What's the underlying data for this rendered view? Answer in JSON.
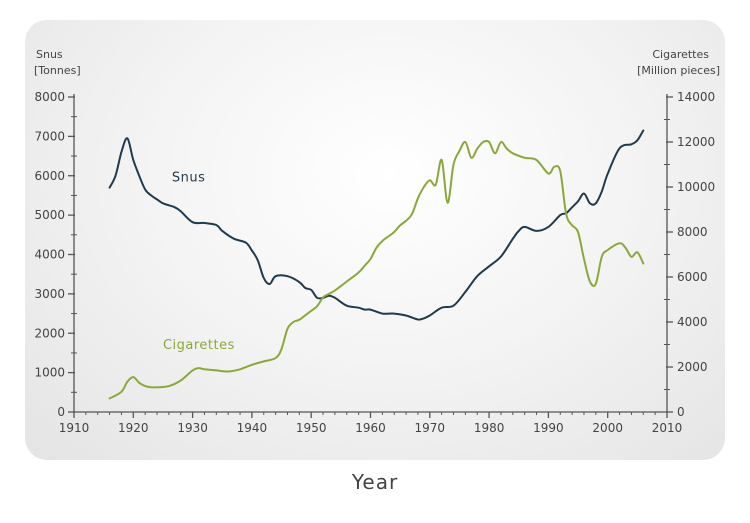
{
  "chart_data": {
    "type": "line",
    "xlabel": "Year",
    "y_left_label_line1": "Snus",
    "y_left_label_line2": "[Tonnes]",
    "y_right_label_line1": "Cigarettes",
    "y_right_label_line2": "[Million pieces]",
    "x_range": [
      1910,
      2010
    ],
    "x_ticks": [
      1910,
      1920,
      1930,
      1940,
      1950,
      1960,
      1970,
      1980,
      1990,
      2000,
      2010
    ],
    "y_left_range": [
      0,
      8000
    ],
    "y_left_ticks": [
      0,
      1000,
      2000,
      3000,
      4000,
      5000,
      6000,
      7000,
      8000
    ],
    "y_right_range": [
      0,
      14000
    ],
    "y_right_ticks": [
      0,
      2000,
      4000,
      6000,
      8000,
      10000,
      12000,
      14000
    ],
    "grid": false,
    "colors": {
      "snus": "#1f3a4d",
      "cigarettes": "#8aa83a",
      "axis": "#555555"
    },
    "series": [
      {
        "name": "Snus",
        "axis": "left",
        "label_year": 1926.5,
        "label_value": 5850,
        "x": [
          1916,
          1917,
          1918,
          1919,
          1920,
          1921,
          1922,
          1923,
          1924,
          1925,
          1926,
          1927,
          1928,
          1930,
          1932,
          1934,
          1935,
          1937,
          1939,
          1940,
          1941,
          1942,
          1943,
          1944,
          1946,
          1948,
          1949,
          1950,
          1951,
          1952,
          1953,
          1954,
          1956,
          1958,
          1959,
          1960,
          1962,
          1964,
          1966,
          1968,
          1969,
          1970,
          1972,
          1974,
          1976,
          1978,
          1980,
          1982,
          1984,
          1985,
          1986,
          1988,
          1990,
          1992,
          1993,
          1994,
          1995,
          1996,
          1997,
          1998,
          1999,
          2000,
          2002,
          2004,
          2005,
          2006
        ],
        "values": [
          5700,
          6000,
          6600,
          6950,
          6400,
          6000,
          5650,
          5500,
          5400,
          5300,
          5250,
          5200,
          5100,
          4820,
          4800,
          4750,
          4600,
          4400,
          4300,
          4100,
          3850,
          3400,
          3250,
          3450,
          3450,
          3300,
          3150,
          3100,
          2900,
          2900,
          2950,
          2900,
          2700,
          2650,
          2600,
          2600,
          2500,
          2500,
          2450,
          2350,
          2380,
          2450,
          2650,
          2700,
          3050,
          3450,
          3700,
          3950,
          4400,
          4600,
          4700,
          4600,
          4700,
          5000,
          5050,
          5200,
          5350,
          5550,
          5300,
          5300,
          5600,
          6050,
          6700,
          6800,
          6900,
          7150
        ]
      },
      {
        "name": "Cigarettes",
        "axis": "right",
        "label_year": 1925,
        "label_value": 2800,
        "x": [
          1916,
          1918,
          1919,
          1920,
          1921,
          1922,
          1923,
          1924,
          1926,
          1928,
          1930,
          1931,
          1932,
          1934,
          1936,
          1938,
          1940,
          1942,
          1944,
          1945,
          1946,
          1947,
          1948,
          1949,
          1950,
          1951,
          1952,
          1953,
          1954,
          1956,
          1958,
          1959,
          1960,
          1961,
          1962,
          1963,
          1964,
          1965,
          1966,
          1967,
          1968,
          1969,
          1970,
          1971,
          1972,
          1973,
          1974,
          1975,
          1976,
          1977,
          1978,
          1979,
          1980,
          1981,
          1982,
          1983,
          1984,
          1986,
          1988,
          1990,
          1991,
          1992,
          1993,
          1994,
          1995,
          1996,
          1997,
          1998,
          1999,
          2000,
          2002,
          2003,
          2004,
          2005,
          2006
        ],
        "values": [
          600,
          900,
          1350,
          1550,
          1300,
          1150,
          1100,
          1100,
          1150,
          1400,
          1850,
          1950,
          1900,
          1850,
          1800,
          1900,
          2100,
          2250,
          2400,
          2800,
          3700,
          4000,
          4100,
          4300,
          4500,
          4700,
          5100,
          5250,
          5400,
          5800,
          6200,
          6500,
          6800,
          7300,
          7600,
          7800,
          8000,
          8300,
          8500,
          8800,
          9500,
          10000,
          10300,
          10100,
          11200,
          9300,
          11000,
          11600,
          12000,
          11300,
          11700,
          12000,
          12000,
          11500,
          12000,
          11700,
          11500,
          11300,
          11200,
          10600,
          10900,
          10700,
          8800,
          8300,
          8000,
          6800,
          5800,
          5700,
          6900,
          7200,
          7500,
          7300,
          6900,
          7100,
          6600
        ]
      }
    ]
  }
}
